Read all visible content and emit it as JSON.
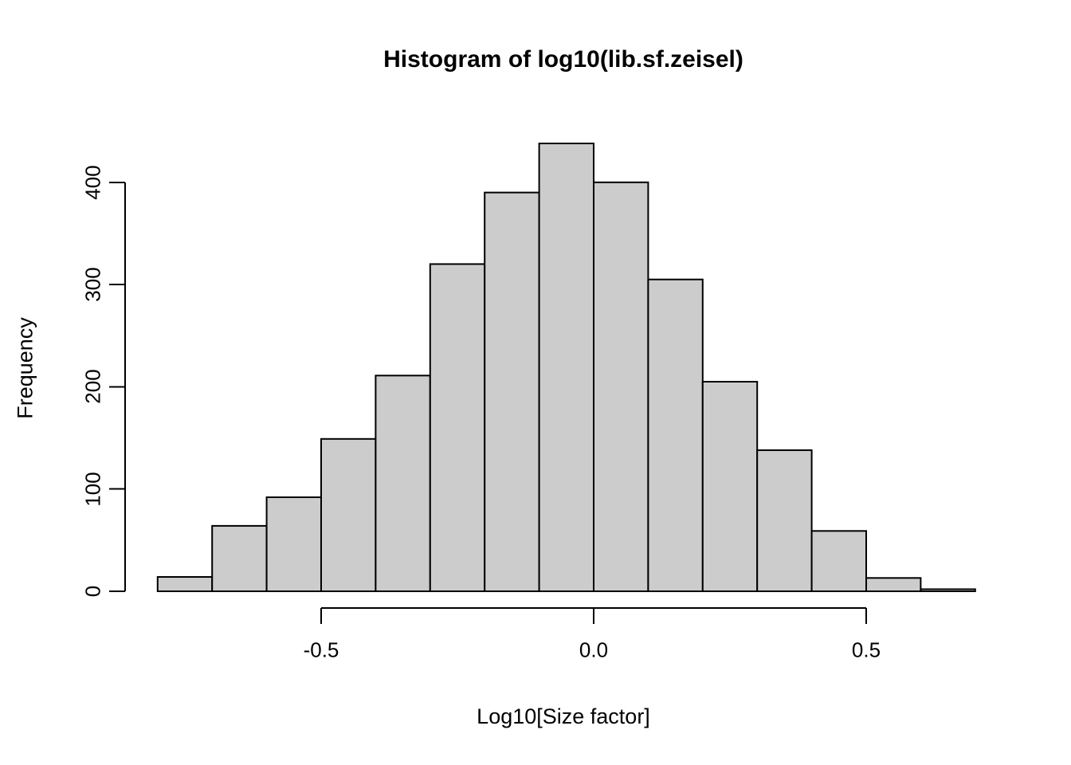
{
  "figure": {
    "title": "Histogram of log10(lib.sf.zeisel)",
    "xlabel": "Log10[Size factor]",
    "ylabel": "Frequency"
  },
  "chart_data": {
    "type": "bar",
    "subtype": "histogram",
    "title": "Histogram of log10(lib.sf.zeisel)",
    "xlabel": "Log10[Size factor]",
    "ylabel": "Frequency",
    "bin_start": -0.8,
    "bin_width": 0.1,
    "bin_edges": [
      -0.8,
      -0.7,
      -0.6,
      -0.5,
      -0.4,
      -0.3,
      -0.2,
      -0.1,
      0.0,
      0.1,
      0.2,
      0.3,
      0.4,
      0.5,
      0.6,
      0.7
    ],
    "counts": [
      14,
      64,
      92,
      149,
      211,
      320,
      390,
      438,
      400,
      305,
      205,
      138,
      59,
      13,
      2
    ],
    "x_ticks": [
      {
        "value": -0.5,
        "label": "-0.5"
      },
      {
        "value": 0.0,
        "label": "0.0"
      },
      {
        "value": 0.5,
        "label": "0.5"
      }
    ],
    "y_ticks": [
      {
        "value": 0,
        "label": "0"
      },
      {
        "value": 100,
        "label": "100"
      },
      {
        "value": 200,
        "label": "200"
      },
      {
        "value": 300,
        "label": "300"
      },
      {
        "value": 400,
        "label": "400"
      }
    ],
    "xlim": [
      -0.5,
      0.5
    ],
    "ylim": [
      0,
      400
    ],
    "grid": false,
    "legend_position": "none",
    "colors": {
      "bar_fill": "#CCCCCC",
      "bar_stroke": "#000000",
      "axis": "#000000",
      "text": "#000000",
      "background": "#FFFFFF"
    }
  }
}
